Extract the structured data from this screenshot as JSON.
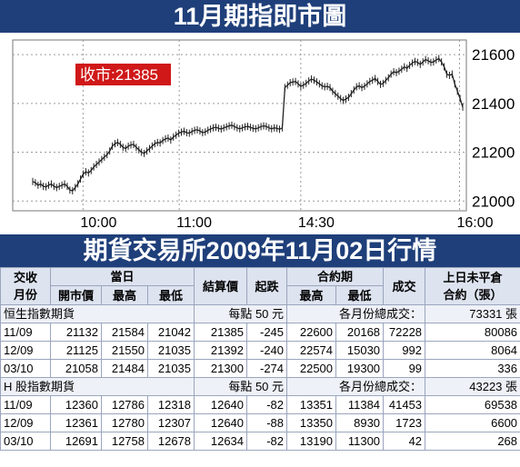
{
  "title": "11月期指即市圖",
  "close_label": "收市:21385",
  "chart_data": {
    "type": "line",
    "ylim": [
      20960,
      21660
    ],
    "y_ticks": [
      "21600",
      "21400",
      "21200",
      "21000"
    ],
    "x_ticks": [
      "10:00",
      "11:00",
      "14:30",
      "16:00"
    ],
    "grid": true,
    "series": [
      {
        "values": [
          21080,
          21075,
          21065,
          21070,
          21060,
          21058,
          21065,
          21070,
          21060,
          21055,
          21060,
          21065,
          21070,
          21060,
          21045,
          21042,
          21055,
          21070,
          21090,
          21110,
          21120,
          21115,
          21125,
          21140,
          21150,
          21160,
          21170,
          21180,
          21190,
          21205,
          21225,
          21235,
          21240,
          21232,
          21220,
          21215,
          21225,
          21230,
          21232,
          21220,
          21210,
          21200,
          21195,
          21205,
          21215,
          21225,
          21235,
          21240,
          21238,
          21248,
          21255,
          21258,
          21250,
          21262,
          21270,
          21278,
          21282,
          21286,
          21280,
          21278,
          21285,
          21290,
          21292,
          21287,
          21280,
          21283,
          21290,
          21295,
          21300,
          21302,
          21298,
          21295,
          21300,
          21304,
          21308,
          21311,
          21305,
          21300,
          21296,
          21300,
          21304,
          21306,
          21302,
          21298,
          21296,
          21300,
          21305,
          21308,
          21306,
          21300,
          21296,
          21300,
          21298,
          21294,
          21300,
          21465,
          21475,
          21485,
          21488,
          21490,
          21480,
          21470,
          21475,
          21482,
          21492,
          21500,
          21495,
          21488,
          21480,
          21472,
          21468,
          21470,
          21465,
          21450,
          21440,
          21430,
          21420,
          21412,
          21418,
          21425,
          21440,
          21455,
          21468,
          21472,
          21465,
          21470,
          21480,
          21490,
          21495,
          21502,
          21490,
          21478,
          21482,
          21494,
          21505,
          21520,
          21530,
          21526,
          21532,
          21540,
          21550,
          21544,
          21556,
          21565,
          21572,
          21568,
          21560,
          21570,
          21580,
          21575,
          21568,
          21570,
          21578,
          21584,
          21570,
          21550,
          21520,
          21515,
          21520,
          21480,
          21450,
          21420,
          21385
        ]
      }
    ]
  },
  "table": {
    "h_contract_top": "交收",
    "h_contract_bottom": "月份",
    "h_day": "當日",
    "h_open": "開市價",
    "h_high": "最高",
    "h_low": "最低",
    "h_settle": "結算價",
    "h_change": "起跌",
    "h_period": "合約期",
    "h_phigh": "最高",
    "h_plow": "最低",
    "h_volume": "成交",
    "h_oi_top": "上日未平倉",
    "h_oi_bottom": "合約（張）",
    "sections": [
      {
        "name": "恒生指數期貨",
        "unit": "每點 50 元",
        "total_label": "各月份總成交：",
        "total": "73331 張",
        "rows": [
          [
            "11/09",
            "21132",
            "21584",
            "21042",
            "21385",
            "-245",
            "22600",
            "20168",
            "72228",
            "80086"
          ],
          [
            "12/09",
            "21125",
            "21550",
            "21035",
            "21392",
            "-240",
            "22574",
            "15030",
            "992",
            "8064"
          ],
          [
            "03/10",
            "21058",
            "21484",
            "21035",
            "21300",
            "-274",
            "22500",
            "19300",
            "99",
            "336"
          ]
        ]
      },
      {
        "name": "H 股指數期貨",
        "unit": "每點 50 元",
        "total_label": "各月份總成交：",
        "total": "43223 張",
        "rows": [
          [
            "11/09",
            "12360",
            "12786",
            "12318",
            "12640",
            "-82",
            "13351",
            "11384",
            "41453",
            "69538"
          ],
          [
            "12/09",
            "12361",
            "12780",
            "12307",
            "12640",
            "-88",
            "13350",
            "8930",
            "1723",
            "6600"
          ],
          [
            "03/10",
            "12691",
            "12758",
            "12678",
            "12634",
            "-82",
            "13190",
            "11300",
            "42",
            "268"
          ]
        ]
      }
    ]
  },
  "subtitle": "期貨交易所2009年11月02日行情",
  "colors": {
    "header_bg": "#1f3f7a",
    "label_bg": "#d01818",
    "line": "#222222"
  }
}
